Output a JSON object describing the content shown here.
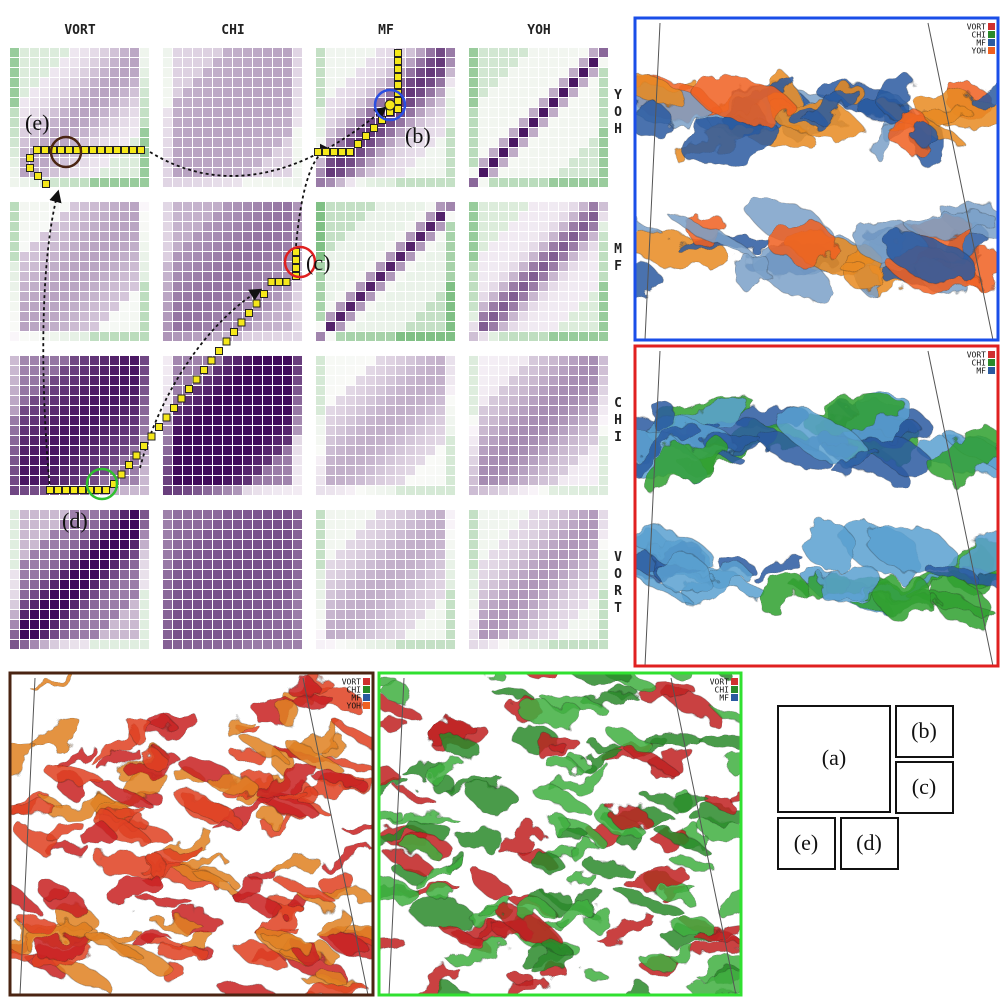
{
  "column_labels": [
    "VORT",
    "CHI",
    "MF",
    "YOH"
  ],
  "row_labels": [
    "YOH",
    "MF",
    "CHI",
    "VORT"
  ],
  "annotations": [
    "(b)",
    "(c)",
    "(d)",
    "(e)"
  ],
  "legend": [
    {
      "name": "VORT",
      "color": "#d03030"
    },
    {
      "name": "CHI",
      "color": "#2a8a2a"
    },
    {
      "name": "MF",
      "color": "#2a5aa0"
    },
    {
      "name": "YOH",
      "color": "#f06020"
    }
  ],
  "layout_labels": [
    "(a)",
    "(b)",
    "(c)",
    "(d)",
    "(e)"
  ]
}
